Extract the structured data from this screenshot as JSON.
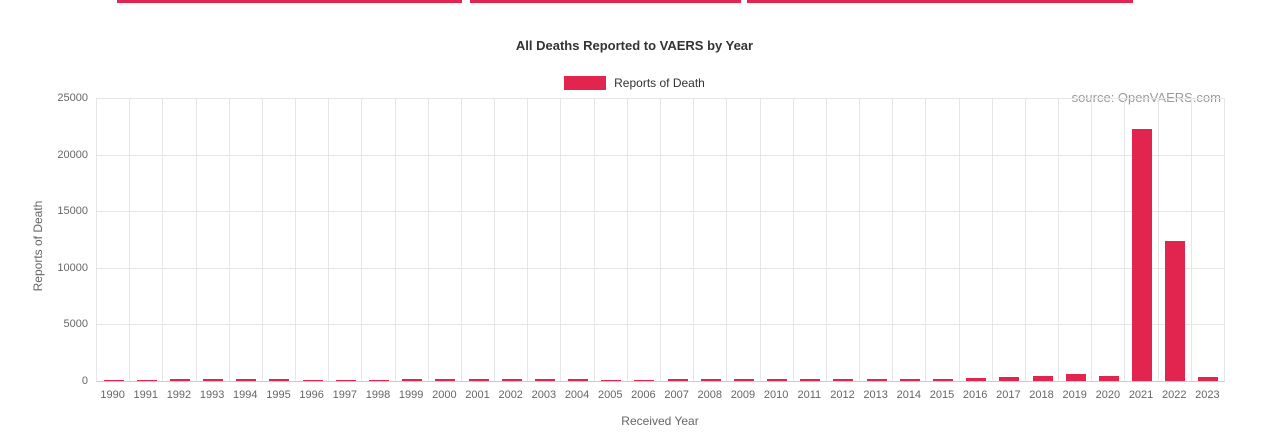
{
  "chart_data": {
    "type": "bar",
    "title": "All Deaths Reported to VAERS by Year",
    "xlabel": "Received Year",
    "ylabel": "Reports of Death",
    "legend": [
      {
        "label": "Reports of Death",
        "color": "#e2254e"
      }
    ],
    "source": "source: OpenVAERS.com",
    "bar_color": "#e2254e",
    "grid": true,
    "legend_position": "top-center",
    "ylim": [
      0,
      25000
    ],
    "yticks": [
      0,
      5000,
      10000,
      15000,
      20000,
      25000
    ],
    "categories": [
      "1990",
      "1991",
      "1992",
      "1993",
      "1994",
      "1995",
      "1996",
      "1997",
      "1998",
      "1999",
      "2000",
      "2001",
      "2002",
      "2003",
      "2004",
      "2005",
      "2006",
      "2007",
      "2008",
      "2009",
      "2010",
      "2011",
      "2012",
      "2013",
      "2014",
      "2015",
      "2016",
      "2017",
      "2018",
      "2019",
      "2020",
      "2021",
      "2022",
      "2023"
    ],
    "values": [
      25,
      130,
      160,
      160,
      165,
      135,
      120,
      100,
      115,
      140,
      150,
      140,
      155,
      160,
      135,
      120,
      120,
      135,
      205,
      210,
      180,
      220,
      200,
      210,
      200,
      220,
      290,
      380,
      420,
      605,
      420,
      22270,
      12380,
      340
    ]
  }
}
